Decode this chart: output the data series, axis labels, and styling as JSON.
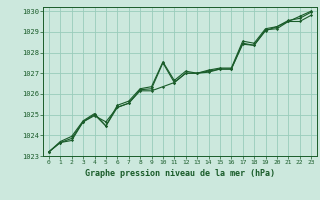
{
  "title": "Graphe pression niveau de la mer (hPa)",
  "bg_color": "#cce8dd",
  "grid_color": "#99ccbb",
  "line_color": "#1a5c2a",
  "marker_color": "#1a5c2a",
  "xlim": [
    -0.5,
    23.5
  ],
  "ylim": [
    1023,
    1030.2
  ],
  "xticks": [
    0,
    1,
    2,
    3,
    4,
    5,
    6,
    7,
    8,
    9,
    10,
    11,
    12,
    13,
    14,
    15,
    16,
    17,
    18,
    19,
    20,
    21,
    22,
    23
  ],
  "yticks": [
    1023,
    1024,
    1025,
    1026,
    1027,
    1028,
    1029,
    1030
  ],
  "series": [
    [
      1023.2,
      1023.65,
      1023.75,
      1024.65,
      1025.0,
      1024.45,
      1025.35,
      1025.55,
      1026.2,
      1026.25,
      1027.5,
      1026.55,
      1027.0,
      1027.0,
      1027.05,
      1027.2,
      1027.2,
      1028.45,
      1028.35,
      1029.1,
      1029.15,
      1029.5,
      1029.5,
      1029.8
    ],
    [
      1023.2,
      1023.65,
      1023.85,
      1024.65,
      1024.95,
      1024.65,
      1025.35,
      1025.55,
      1026.15,
      1026.15,
      1026.35,
      1026.55,
      1027.0,
      1027.0,
      1027.1,
      1027.2,
      1027.2,
      1028.4,
      1028.35,
      1029.05,
      1029.25,
      1029.5,
      1029.75,
      1030.0
    ],
    [
      1023.2,
      1023.7,
      1023.95,
      1024.7,
      1025.05,
      1024.45,
      1025.45,
      1025.65,
      1026.25,
      1026.35,
      1027.55,
      1026.65,
      1027.1,
      1027.0,
      1027.15,
      1027.25,
      1027.25,
      1028.55,
      1028.45,
      1029.15,
      1029.25,
      1029.55,
      1029.65,
      1029.95
    ]
  ]
}
